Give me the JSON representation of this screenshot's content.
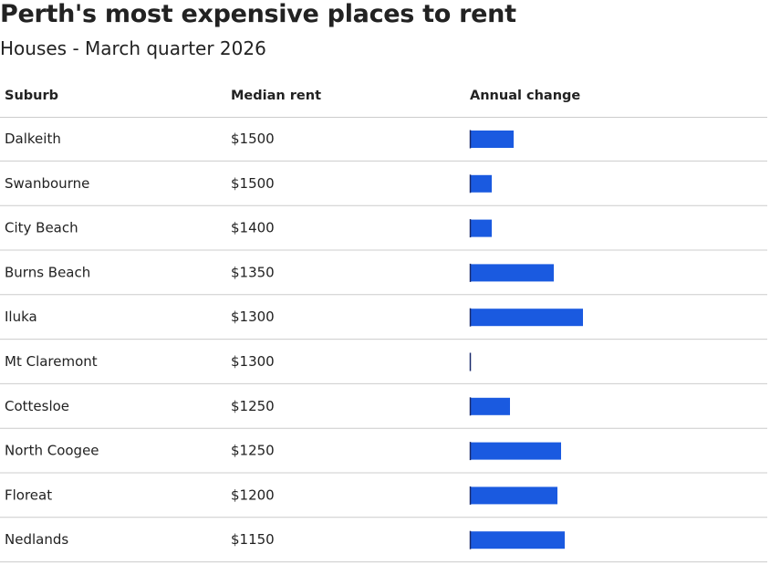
{
  "header": {
    "title": "Perth's most expensive places to rent",
    "subtitle": "Houses - March quarter 2026"
  },
  "table": {
    "columns": [
      "Suburb",
      "Median rent",
      "Annual change"
    ],
    "bar_color": "#1a5ae0",
    "rows": [
      {
        "suburb": "Dalkeith",
        "median_rent": "$1500",
        "annual_change": 12
      },
      {
        "suburb": "Swanbourne",
        "median_rent": "$1500",
        "annual_change": 6
      },
      {
        "suburb": "City Beach",
        "median_rent": "$1400",
        "annual_change": 6
      },
      {
        "suburb": "Burns Beach",
        "median_rent": "$1350",
        "annual_change": 23
      },
      {
        "suburb": "Iluka",
        "median_rent": "$1300",
        "annual_change": 31
      },
      {
        "suburb": "Mt Claremont",
        "median_rent": "$1300",
        "annual_change": 0
      },
      {
        "suburb": "Cottesloe",
        "median_rent": "$1250",
        "annual_change": 11
      },
      {
        "suburb": "North Coogee",
        "median_rent": "$1250",
        "annual_change": 25
      },
      {
        "suburb": "Floreat",
        "median_rent": "$1200",
        "annual_change": 24
      },
      {
        "suburb": "Nedlands",
        "median_rent": "$1150",
        "annual_change": 26
      }
    ]
  }
}
